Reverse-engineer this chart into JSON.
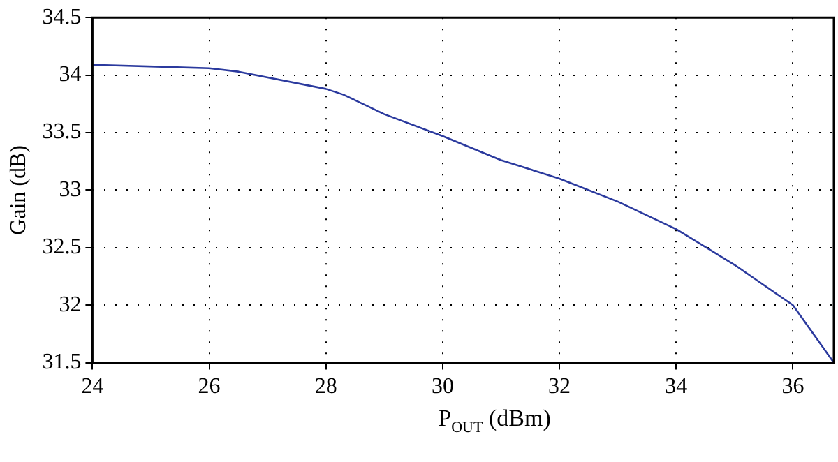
{
  "chart_data": {
    "type": "line",
    "xlabel": "P$_{OUT}$ (dBm)",
    "ylabel": "Gain (dB)",
    "xlim": [
      24,
      36.7
    ],
    "xticks": [
      24,
      26,
      28,
      30,
      32,
      34,
      36
    ],
    "ylim": [
      31.5,
      34.5
    ],
    "yticks": [
      31.5,
      32,
      32.5,
      33,
      33.5,
      34,
      34.5
    ],
    "grid": true,
    "legend": false,
    "marker": "none",
    "line_style": "solid",
    "series": [
      {
        "color": "#2b3a9e",
        "x": [
          24,
          26,
          26.5,
          28,
          28.3,
          29,
          30,
          31,
          32,
          33,
          34,
          35,
          36,
          36.7
        ],
        "values": [
          34.09,
          34.06,
          34.03,
          33.88,
          33.83,
          33.66,
          33.47,
          33.26,
          33.1,
          32.9,
          32.66,
          32.35,
          32,
          31.5
        ]
      }
    ]
  }
}
